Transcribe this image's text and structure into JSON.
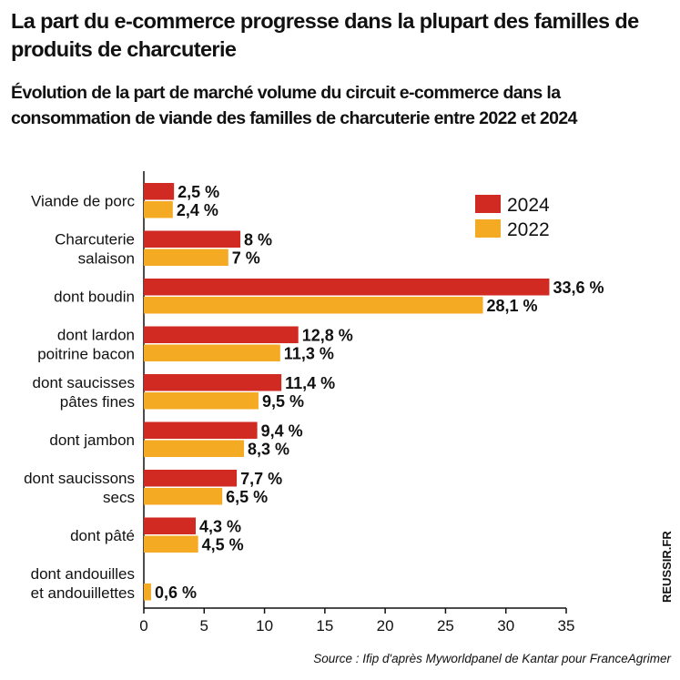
{
  "header": {
    "title": "La part du e-commerce progresse dans la plupart des familles de produits de charcuterie",
    "subtitle": "Évolution de la part de marché volume du circuit e-commerce dans la consommation de viande des familles de charcuterie entre 2022 et 2024"
  },
  "footer": {
    "source": "Source : Ifip d'après Myworldpanel de Kantar pour FranceAgrimer",
    "watermark": "REUSSIR.FR"
  },
  "colors": {
    "s2024": "#d02a22",
    "s2022": "#f5aa24"
  },
  "chart_data": {
    "type": "bar",
    "orientation": "horizontal",
    "title": "Évolution de la part de marché volume du circuit e-commerce dans la consommation de viande des familles de charcuterie entre 2022 et 2024",
    "categories": [
      [
        "Viande de porc"
      ],
      [
        "Charcuterie",
        "salaison"
      ],
      [
        "dont boudin"
      ],
      [
        "dont lardon",
        "poitrine bacon"
      ],
      [
        "dont saucisses",
        "pâtes fines"
      ],
      [
        "dont jambon"
      ],
      [
        "dont saucissons",
        "secs"
      ],
      [
        "dont pâté"
      ],
      [
        "dont andouilles",
        "et andouillettes"
      ]
    ],
    "series": [
      {
        "name": "2024",
        "values": [
          2.5,
          8,
          33.6,
          12.8,
          11.4,
          9.4,
          7.7,
          4.3,
          null
        ],
        "labels": [
          "2,5 %",
          "8 %",
          "33,6 %",
          "12,8 %",
          "11,4 %",
          "9,4 %",
          "7,7 %",
          "4,3 %",
          ""
        ]
      },
      {
        "name": "2022",
        "values": [
          2.4,
          7,
          28.1,
          11.3,
          9.5,
          8.3,
          6.5,
          4.5,
          0.6
        ],
        "labels": [
          "2,4 %",
          "7 %",
          "28,1 %",
          "11,3 %",
          "9,5 %",
          "8,3 %",
          "6,5 %",
          "4,5 %",
          "0,6 %"
        ]
      }
    ],
    "xlim": [
      0,
      35
    ],
    "xticks": [
      "0",
      "5",
      "10",
      "15",
      "20",
      "25",
      "30",
      "35"
    ],
    "legend": {
      "position": "top-right",
      "entries": [
        "2024",
        "2022"
      ]
    },
    "xlabel": "",
    "ylabel": ""
  }
}
